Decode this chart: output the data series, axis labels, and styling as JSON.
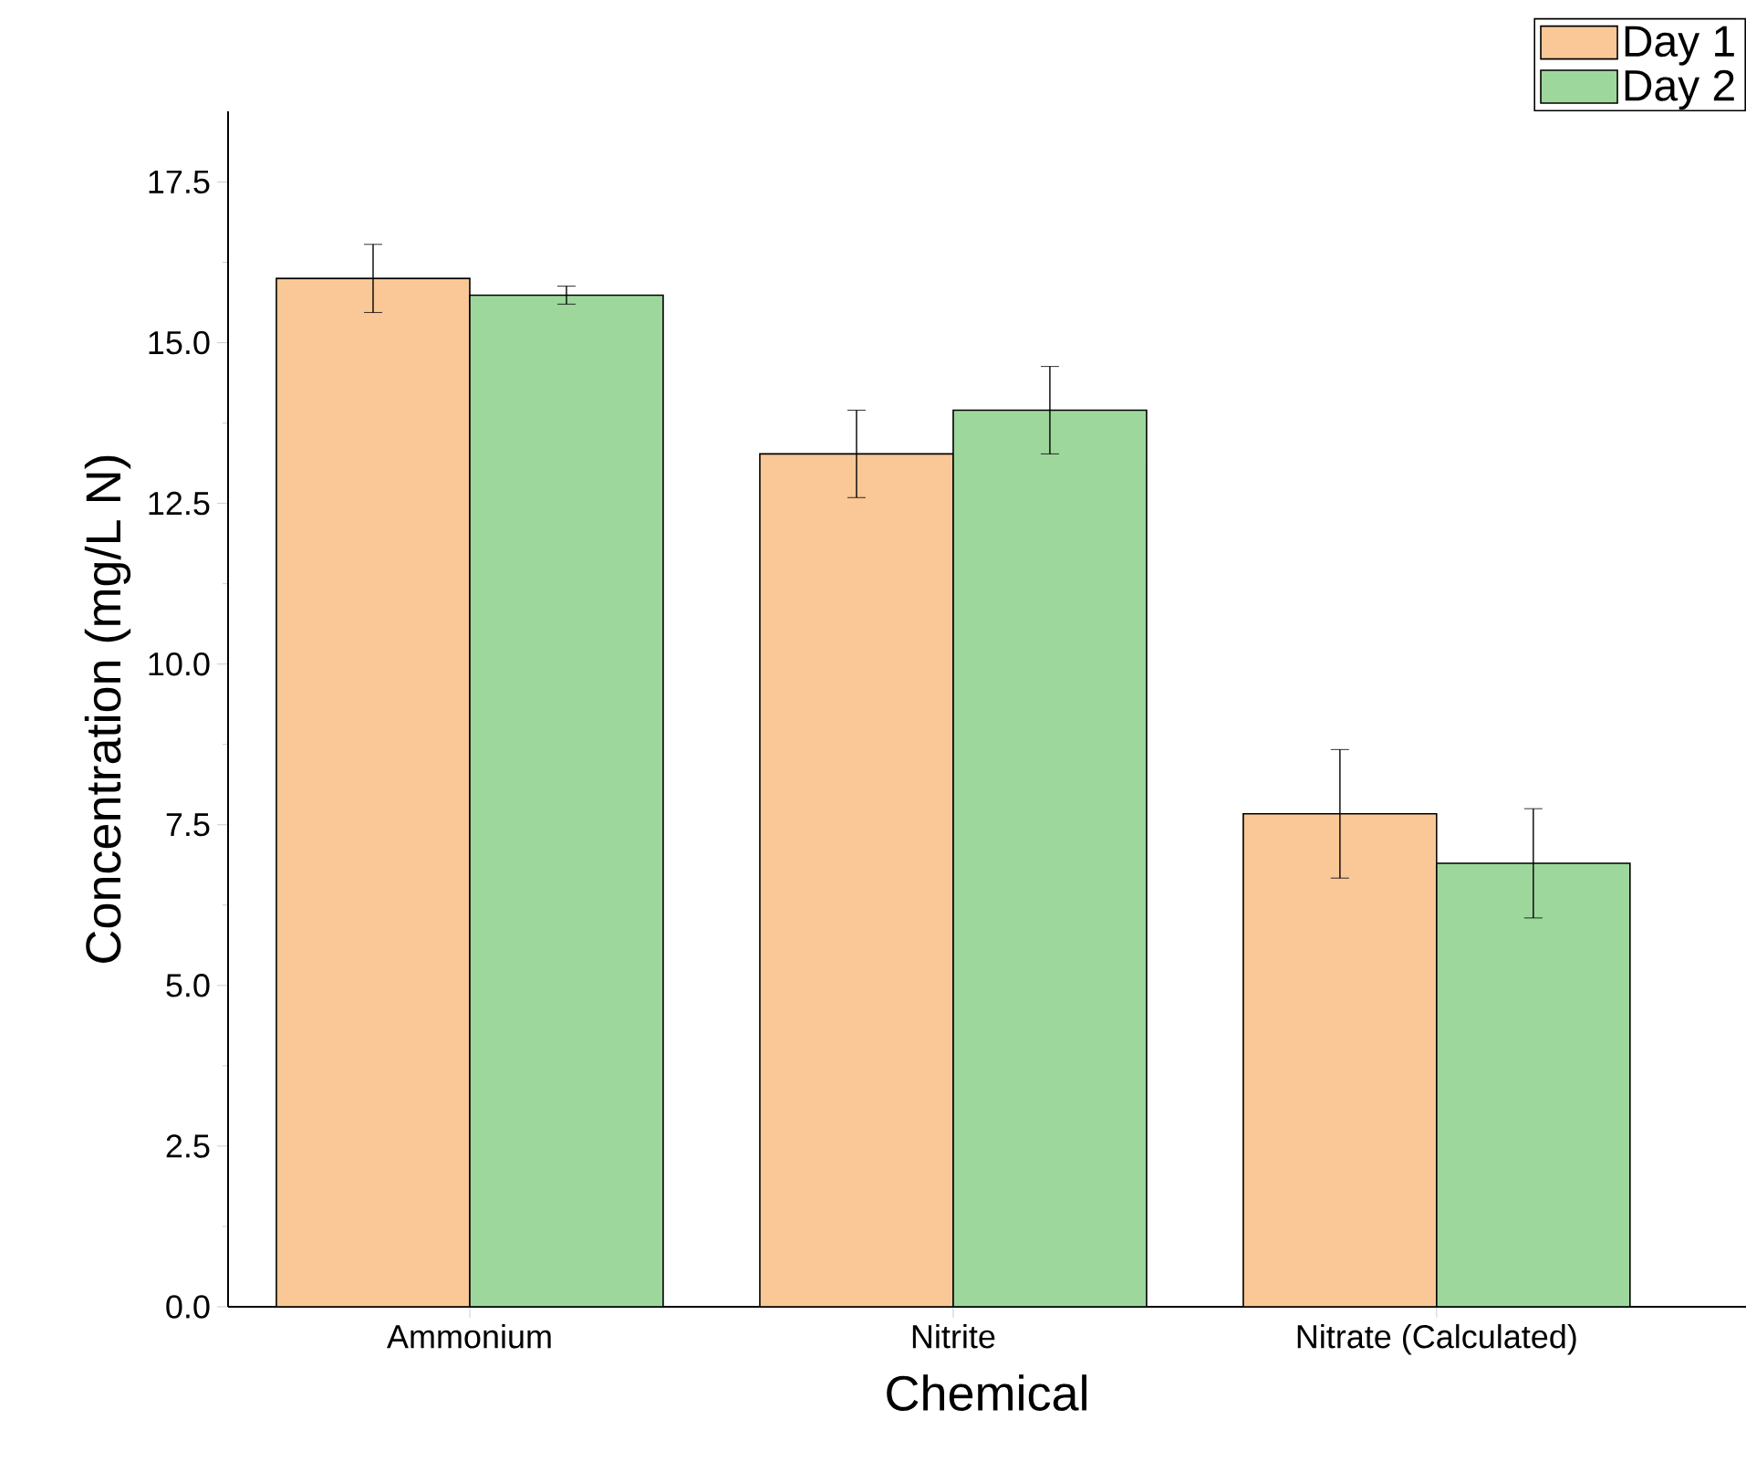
{
  "chart_data": {
    "type": "bar",
    "xlabel": "Chemical",
    "ylabel": "Concentration (mg/L N)",
    "categories": [
      "Ammonium",
      "Nitrite",
      "Nitrate (Calculated)"
    ],
    "series": [
      {
        "name": "Day 1",
        "color": "#f9c896",
        "values": [
          16.0,
          13.27,
          7.67
        ],
        "errors": [
          0.53,
          0.68,
          1.0
        ]
      },
      {
        "name": "Day 2",
        "color": "#9dd79c",
        "values": [
          15.74,
          13.95,
          6.9
        ],
        "errors": [
          0.14,
          0.68,
          0.85
        ]
      }
    ],
    "ylim": [
      0,
      18.6
    ],
    "yticks": [
      {
        "value": 0,
        "label": "0.0"
      },
      {
        "value": 2.5,
        "label": "2.5"
      },
      {
        "value": 5,
        "label": "5.0"
      },
      {
        "value": 7.5,
        "label": "7.5"
      },
      {
        "value": 10,
        "label": "10.0"
      },
      {
        "value": 12.5,
        "label": "12.5"
      },
      {
        "value": 15,
        "label": "15.0"
      },
      {
        "value": 17.5,
        "label": "17.5"
      }
    ],
    "legend": "top right",
    "grid": false
  }
}
